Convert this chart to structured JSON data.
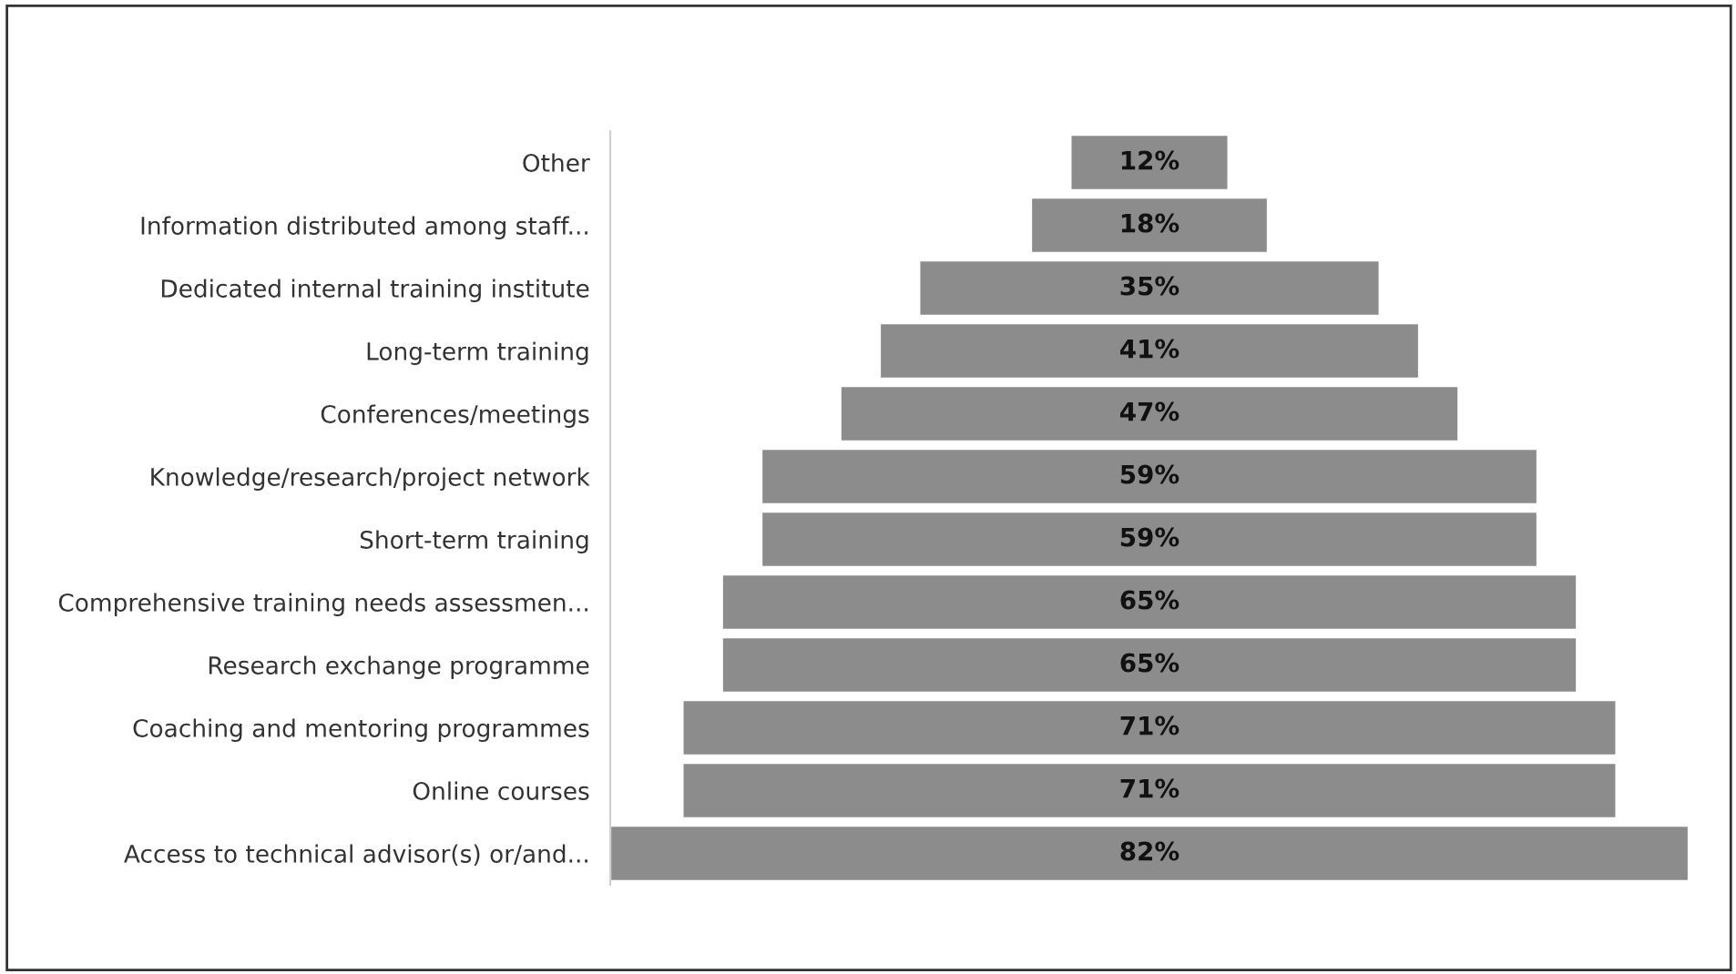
{
  "chart_data": {
    "type": "other",
    "categories": [
      "Other",
      "Information distributed among staff...",
      "Dedicated internal training institute",
      "Long-term training",
      "Conferences/meetings",
      "Knowledge/research/project network",
      "Short-term training",
      "Comprehensive training needs assessmen...",
      "Research exchange programme",
      "Coaching and mentoring programmes",
      "Online courses",
      "Access to technical advisor(s) or/and..."
    ],
    "values": [
      12,
      18,
      35,
      41,
      47,
      59,
      59,
      65,
      65,
      71,
      71,
      82
    ],
    "value_labels": [
      "12%",
      "18%",
      "35%",
      "41%",
      "47%",
      "59%",
      "59%",
      "65%",
      "65%",
      "71%",
      "71%",
      "82%"
    ],
    "color": "#8c8c8c"
  }
}
